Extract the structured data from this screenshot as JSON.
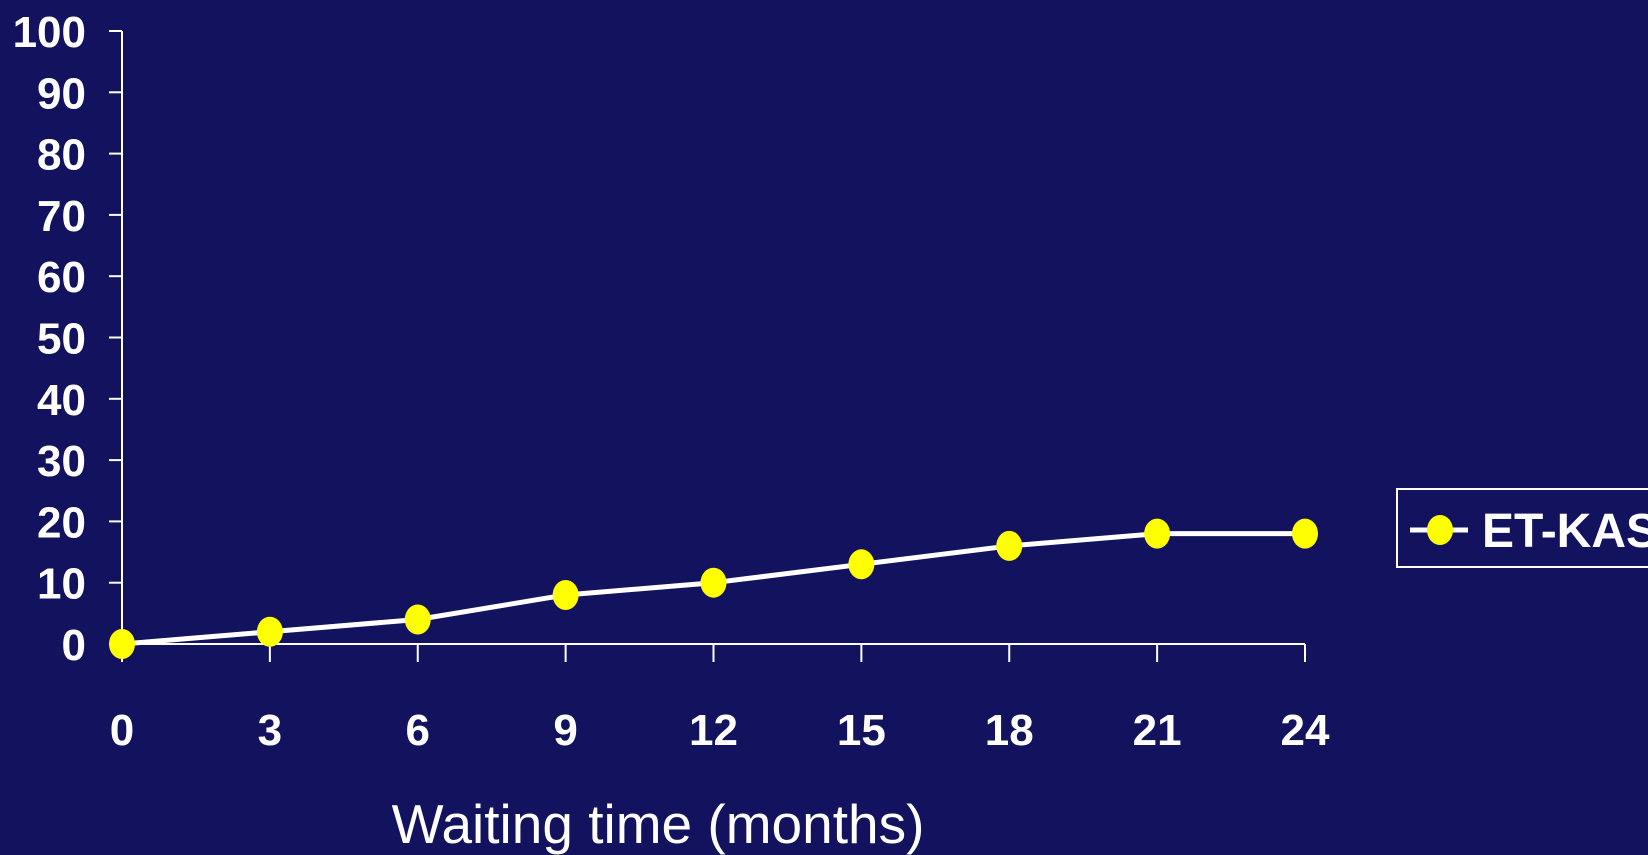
{
  "chart_data": {
    "type": "line",
    "title": "",
    "xlabel": "Waiting time (months)",
    "ylabel": "",
    "x": [
      0,
      3,
      6,
      9,
      12,
      15,
      18,
      21,
      24
    ],
    "xlim": [
      0,
      24
    ],
    "ylim": [
      0,
      100
    ],
    "x_ticks": [
      0,
      3,
      6,
      9,
      12,
      15,
      18,
      21,
      24
    ],
    "y_ticks": [
      0,
      10,
      20,
      30,
      40,
      50,
      60,
      70,
      80,
      90,
      100
    ],
    "series": [
      {
        "name": "ET-KAS",
        "values": [
          0,
          2,
          4,
          8,
          10,
          13,
          16,
          18,
          18
        ],
        "line_color": "#ffffff",
        "marker_color": "#ffff00",
        "marker": "circle"
      }
    ],
    "grid": false,
    "legend": "right",
    "background_color": "#12125f",
    "axis_color": "#ffffff"
  }
}
